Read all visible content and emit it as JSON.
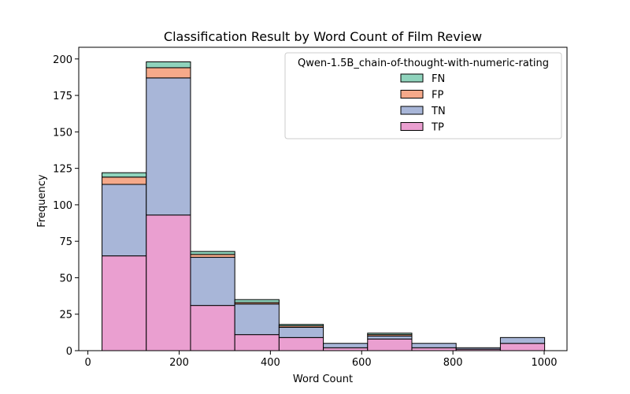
{
  "chart_data": {
    "type": "bar",
    "stacked": true,
    "title": "Classification Result by Word Count of Film Review",
    "xlabel": "Word Count",
    "ylabel": "Frequency",
    "xlim": [
      -20,
      1050
    ],
    "ylim": [
      0,
      208
    ],
    "xticks": [
      0,
      200,
      400,
      600,
      800,
      1000
    ],
    "yticks": [
      0,
      25,
      50,
      75,
      100,
      125,
      150,
      175,
      200
    ],
    "bin_edges": [
      31,
      128,
      225,
      322,
      419,
      516,
      613,
      710,
      807,
      904,
      1001
    ],
    "grid": false,
    "legend": {
      "title": "Qwen-1.5B_chain-of-thought-with-numeric-rating",
      "placement": "top-right"
    },
    "series": [
      {
        "name": "TP",
        "color": "#ea9fd0",
        "values": [
          65,
          93,
          31,
          11,
          9,
          2,
          8,
          2,
          1,
          5
        ]
      },
      {
        "name": "TN",
        "color": "#a8b6d8",
        "values": [
          49,
          94,
          33,
          21,
          7,
          3,
          2,
          3,
          1,
          4
        ]
      },
      {
        "name": "FP",
        "color": "#f5a98a",
        "values": [
          5,
          7,
          2,
          1,
          1,
          0,
          1,
          0,
          0,
          0
        ]
      },
      {
        "name": "FN",
        "color": "#8fd3bc",
        "values": [
          3,
          4,
          2,
          2,
          1,
          0,
          1,
          0,
          0,
          0
        ]
      }
    ],
    "legend_order": [
      "FN",
      "FP",
      "TN",
      "TP"
    ]
  }
}
